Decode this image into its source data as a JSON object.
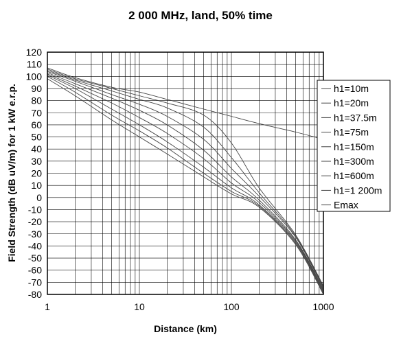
{
  "chart_data": {
    "type": "line",
    "title": "2 000 MHz, land, 50% time",
    "xlabel": "Distance (km)",
    "ylabel": "Field Strength (dB uV/m) for 1 kW e.r.p.",
    "x_scale": "log",
    "xlim": [
      1,
      1000
    ],
    "ylim": [
      -80,
      120
    ],
    "x_ticks": [
      "1",
      "10",
      "100",
      "1000"
    ],
    "y_ticks": [
      "120",
      "110",
      "100",
      "90",
      "80",
      "70",
      "60",
      "50",
      "40",
      "30",
      "20",
      "10",
      "0",
      "-10",
      "-20",
      "-30",
      "-40",
      "-50",
      "-60",
      "-70",
      "-80"
    ],
    "grid": true,
    "legend_position": "right",
    "x": [
      1,
      2,
      5,
      10,
      20,
      50,
      100,
      200,
      500,
      1000
    ],
    "series": [
      {
        "name": "h1=10m",
        "values": [
          98,
          84,
          64,
          50,
          36,
          17,
          3,
          -8,
          -39,
          -80
        ]
      },
      {
        "name": "h1=20m",
        "values": [
          100,
          87,
          68,
          55,
          41,
          20,
          5,
          -7,
          -38,
          -79
        ]
      },
      {
        "name": "h1=37.5m",
        "values": [
          101,
          90,
          73,
          60,
          46,
          25,
          8,
          -6,
          -37,
          -78
        ]
      },
      {
        "name": "h1=75m",
        "values": [
          102,
          92,
          78,
          66,
          53,
          32,
          12,
          -4,
          -36,
          -77
        ]
      },
      {
        "name": "h1=150m",
        "values": [
          103,
          94,
          82,
          72,
          60,
          39,
          17,
          -2,
          -35,
          -76
        ]
      },
      {
        "name": "h1=300m",
        "values": [
          104,
          96,
          85,
          77,
          67,
          48,
          24,
          1,
          -33,
          -75
        ]
      },
      {
        "name": "h1=600m",
        "values": [
          105,
          97,
          88,
          81,
          74,
          58,
          33,
          4,
          -32,
          -74
        ]
      },
      {
        "name": "h1=1 200m",
        "values": [
          106,
          98,
          90,
          84,
          78,
          68,
          45,
          8,
          -31,
          -73
        ]
      },
      {
        "name": "Emax",
        "values": [
          107,
          99,
          91,
          87,
          81,
          73,
          67,
          61,
          54,
          48
        ]
      }
    ]
  }
}
